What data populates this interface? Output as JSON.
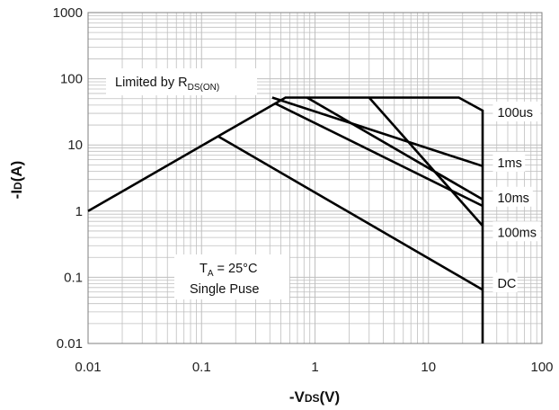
{
  "chart_data": {
    "type": "line",
    "x_scale": "log",
    "y_scale": "log",
    "xlim": [
      0.01,
      100
    ],
    "ylim": [
      0.01,
      1000
    ],
    "xlabel": {
      "prefix": "-V",
      "sub": "DS",
      "suffix": "(V)"
    },
    "ylabel": {
      "prefix": "-I",
      "sub": "D",
      "suffix": "(A)"
    },
    "x_ticks": [
      {
        "value": 0.01,
        "label": "0.01"
      },
      {
        "value": 0.1,
        "label": "0.1"
      },
      {
        "value": 1,
        "label": "1"
      },
      {
        "value": 10,
        "label": "10"
      },
      {
        "value": 100,
        "label": "100"
      }
    ],
    "y_ticks": [
      {
        "value": 0.01,
        "label": "0.01"
      },
      {
        "value": 0.1,
        "label": "0.1"
      },
      {
        "value": 1,
        "label": "1"
      },
      {
        "value": 10,
        "label": "10"
      },
      {
        "value": 100,
        "label": "100"
      },
      {
        "value": 1000,
        "label": "1000"
      }
    ],
    "grid": true,
    "series": [
      {
        "name": "100us",
        "points": [
          [
            0.01,
            1.0
          ],
          [
            0.55,
            52
          ],
          [
            18.5,
            52
          ],
          [
            30,
            33
          ],
          [
            30,
            0.01
          ]
        ]
      },
      {
        "name": "1ms",
        "points": [
          [
            0.42,
            52
          ],
          [
            30,
            4.8
          ]
        ]
      },
      {
        "name": "10ms",
        "points": [
          [
            0.85,
            52
          ],
          [
            30,
            1.5
          ]
        ]
      },
      {
        "name": "100ms",
        "points": [
          [
            3.0,
            52
          ],
          [
            30,
            0.6
          ]
        ]
      },
      {
        "name": "",
        "points": [
          [
            0.45,
            42
          ],
          [
            30,
            1.2
          ]
        ]
      },
      {
        "name": "DC",
        "points": [
          [
            0.14,
            13.5
          ],
          [
            30,
            0.065
          ]
        ]
      }
    ],
    "annotations": {
      "limited": {
        "prefix": "Limited by R",
        "sub": "DS(ON)"
      },
      "ta_line": {
        "prefix": "T",
        "sub": "A",
        "suffix": " = 25°C"
      },
      "pulse": "Single Puse"
    },
    "series_labels": [
      {
        "text": "100us",
        "x": 40.5,
        "y": 31
      },
      {
        "text": "1ms",
        "x": 40.5,
        "y": 5.4
      },
      {
        "text": "10ms",
        "x": 40.5,
        "y": 1.6
      },
      {
        "text": "100ms",
        "x": 40.5,
        "y": 0.48
      },
      {
        "text": "DC",
        "x": 40.5,
        "y": 0.081
      }
    ],
    "colors": {
      "line": "#000000",
      "grid": "#bfbfbf",
      "axis": "#7f7f7f"
    }
  }
}
